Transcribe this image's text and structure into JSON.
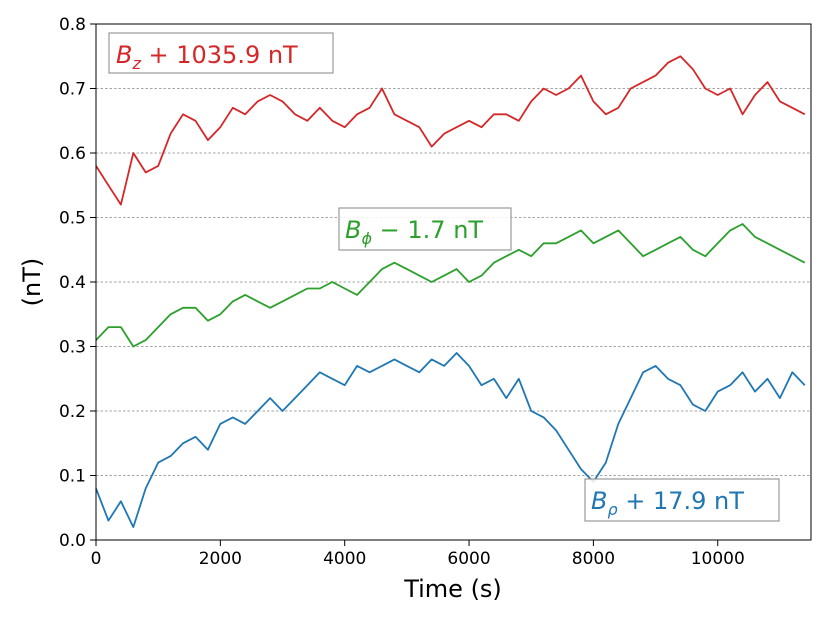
{
  "chart_data": {
    "type": "line",
    "xlabel": "Time (s)",
    "ylabel": "(nT)",
    "xlim": [
      0,
      11500
    ],
    "ylim": [
      0.0,
      0.8
    ],
    "xticks": [
      0,
      2000,
      4000,
      6000,
      8000,
      10000
    ],
    "yticks": [
      0.0,
      0.1,
      0.2,
      0.3,
      0.4,
      0.5,
      0.6,
      0.7,
      0.8
    ],
    "grid": "horizontal dashed",
    "series": [
      {
        "label_main": "B",
        "label_sub": "z",
        "label_rest": " + 1035.9 nT",
        "color": "#d62728",
        "x": [
          0,
          200,
          400,
          600,
          800,
          1000,
          1200,
          1400,
          1600,
          1800,
          2000,
          2200,
          2400,
          2600,
          2800,
          3000,
          3200,
          3400,
          3600,
          3800,
          4000,
          4200,
          4400,
          4600,
          4800,
          5000,
          5200,
          5400,
          5600,
          5800,
          6000,
          6200,
          6400,
          6600,
          6800,
          7000,
          7200,
          7400,
          7600,
          7800,
          8000,
          8200,
          8400,
          8600,
          8800,
          9000,
          9200,
          9400,
          9600,
          9800,
          10000,
          10200,
          10400,
          10600,
          10800,
          11000,
          11200,
          11400
        ],
        "y": [
          0.58,
          0.55,
          0.52,
          0.6,
          0.57,
          0.58,
          0.63,
          0.66,
          0.65,
          0.62,
          0.64,
          0.67,
          0.66,
          0.68,
          0.69,
          0.68,
          0.66,
          0.65,
          0.67,
          0.65,
          0.64,
          0.66,
          0.67,
          0.7,
          0.66,
          0.65,
          0.64,
          0.61,
          0.63,
          0.64,
          0.65,
          0.64,
          0.66,
          0.66,
          0.65,
          0.68,
          0.7,
          0.69,
          0.7,
          0.72,
          0.68,
          0.66,
          0.67,
          0.7,
          0.71,
          0.72,
          0.74,
          0.75,
          0.73,
          0.7,
          0.69,
          0.7,
          0.66,
          0.69,
          0.71,
          0.68,
          0.67,
          0.66
        ]
      },
      {
        "label_main": "B",
        "label_sub": "ϕ",
        "label_rest": " − 1.7 nT",
        "color": "#2ca02c",
        "x": [
          0,
          200,
          400,
          600,
          800,
          1000,
          1200,
          1400,
          1600,
          1800,
          2000,
          2200,
          2400,
          2600,
          2800,
          3000,
          3200,
          3400,
          3600,
          3800,
          4000,
          4200,
          4400,
          4600,
          4800,
          5000,
          5200,
          5400,
          5600,
          5800,
          6000,
          6200,
          6400,
          6600,
          6800,
          7000,
          7200,
          7400,
          7600,
          7800,
          8000,
          8200,
          8400,
          8600,
          8800,
          9000,
          9200,
          9400,
          9600,
          9800,
          10000,
          10200,
          10400,
          10600,
          10800,
          11000,
          11200,
          11400
        ],
        "y": [
          0.31,
          0.33,
          0.33,
          0.3,
          0.31,
          0.33,
          0.35,
          0.36,
          0.36,
          0.34,
          0.35,
          0.37,
          0.38,
          0.37,
          0.36,
          0.37,
          0.38,
          0.39,
          0.39,
          0.4,
          0.39,
          0.38,
          0.4,
          0.42,
          0.43,
          0.42,
          0.41,
          0.4,
          0.41,
          0.42,
          0.4,
          0.41,
          0.43,
          0.44,
          0.45,
          0.44,
          0.46,
          0.46,
          0.47,
          0.48,
          0.46,
          0.47,
          0.48,
          0.46,
          0.44,
          0.45,
          0.46,
          0.47,
          0.45,
          0.44,
          0.46,
          0.48,
          0.49,
          0.47,
          0.46,
          0.45,
          0.44,
          0.43
        ]
      },
      {
        "label_main": "B",
        "label_sub": "ρ",
        "label_rest": " + 17.9 nT",
        "color": "#1f77b4",
        "x": [
          0,
          200,
          400,
          600,
          800,
          1000,
          1200,
          1400,
          1600,
          1800,
          2000,
          2200,
          2400,
          2600,
          2800,
          3000,
          3200,
          3400,
          3600,
          3800,
          4000,
          4200,
          4400,
          4600,
          4800,
          5000,
          5200,
          5400,
          5600,
          5800,
          6000,
          6200,
          6400,
          6600,
          6800,
          7000,
          7200,
          7400,
          7600,
          7800,
          8000,
          8200,
          8400,
          8600,
          8800,
          9000,
          9200,
          9400,
          9600,
          9800,
          10000,
          10200,
          10400,
          10600,
          10800,
          11000,
          11200,
          11400
        ],
        "y": [
          0.08,
          0.03,
          0.06,
          0.02,
          0.08,
          0.12,
          0.13,
          0.15,
          0.16,
          0.14,
          0.18,
          0.19,
          0.18,
          0.2,
          0.22,
          0.2,
          0.22,
          0.24,
          0.26,
          0.25,
          0.24,
          0.27,
          0.26,
          0.27,
          0.28,
          0.27,
          0.26,
          0.28,
          0.27,
          0.29,
          0.27,
          0.24,
          0.25,
          0.22,
          0.25,
          0.2,
          0.19,
          0.17,
          0.14,
          0.11,
          0.09,
          0.12,
          0.18,
          0.22,
          0.26,
          0.27,
          0.25,
          0.24,
          0.21,
          0.2,
          0.23,
          0.24,
          0.26,
          0.23,
          0.25,
          0.22,
          0.26,
          0.24
        ]
      }
    ]
  }
}
